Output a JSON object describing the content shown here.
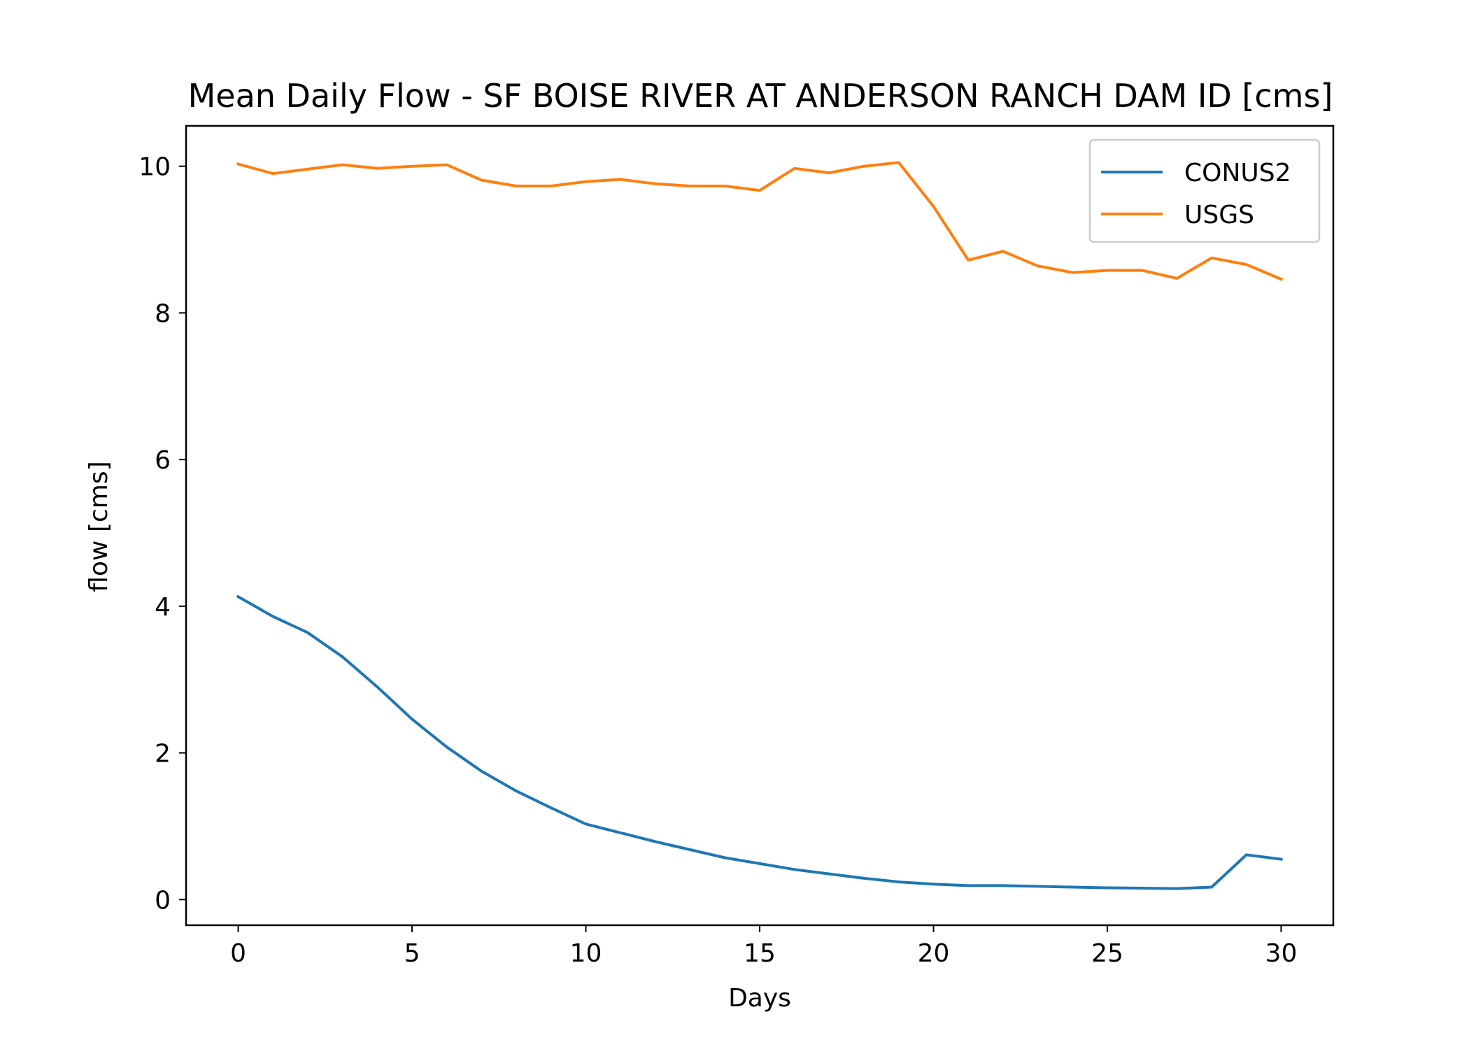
{
  "chart_data": {
    "type": "line",
    "title": "Mean Daily Flow - SF BOISE RIVER AT ANDERSON RANCH DAM ID [cms]",
    "xlabel": "Days",
    "ylabel": "flow [cms]",
    "xlim": [
      -1.5,
      31.5
    ],
    "ylim": [
      -0.35,
      10.55
    ],
    "xticks": [
      0,
      5,
      10,
      15,
      20,
      25,
      30
    ],
    "yticks": [
      0,
      2,
      4,
      6,
      8,
      10
    ],
    "grid": false,
    "legend_position": "top-right",
    "x": [
      0,
      1,
      2,
      3,
      4,
      5,
      6,
      7,
      8,
      9,
      10,
      11,
      12,
      13,
      14,
      15,
      16,
      17,
      18,
      19,
      20,
      21,
      22,
      23,
      24,
      25,
      26,
      27,
      28,
      29,
      30
    ],
    "series": [
      {
        "name": "CONUS2",
        "color": "#1f77b4",
        "values": [
          4.13,
          3.86,
          3.64,
          3.31,
          2.9,
          2.46,
          2.08,
          1.75,
          1.48,
          1.25,
          1.03,
          0.91,
          0.79,
          0.68,
          0.57,
          0.49,
          0.41,
          0.35,
          0.29,
          0.24,
          0.21,
          0.19,
          0.19,
          0.18,
          0.17,
          0.16,
          0.155,
          0.15,
          0.17,
          0.61,
          0.55
        ]
      },
      {
        "name": "USGS",
        "color": "#ff7f0e",
        "values": [
          10.03,
          9.9,
          9.96,
          10.02,
          9.97,
          10.0,
          10.02,
          9.81,
          9.73,
          9.73,
          9.79,
          9.82,
          9.76,
          9.73,
          9.73,
          9.67,
          9.97,
          9.91,
          10.0,
          10.05,
          9.45,
          8.72,
          8.84,
          8.64,
          8.55,
          8.58,
          8.58,
          8.47,
          8.75,
          8.66,
          8.46
        ]
      }
    ]
  }
}
